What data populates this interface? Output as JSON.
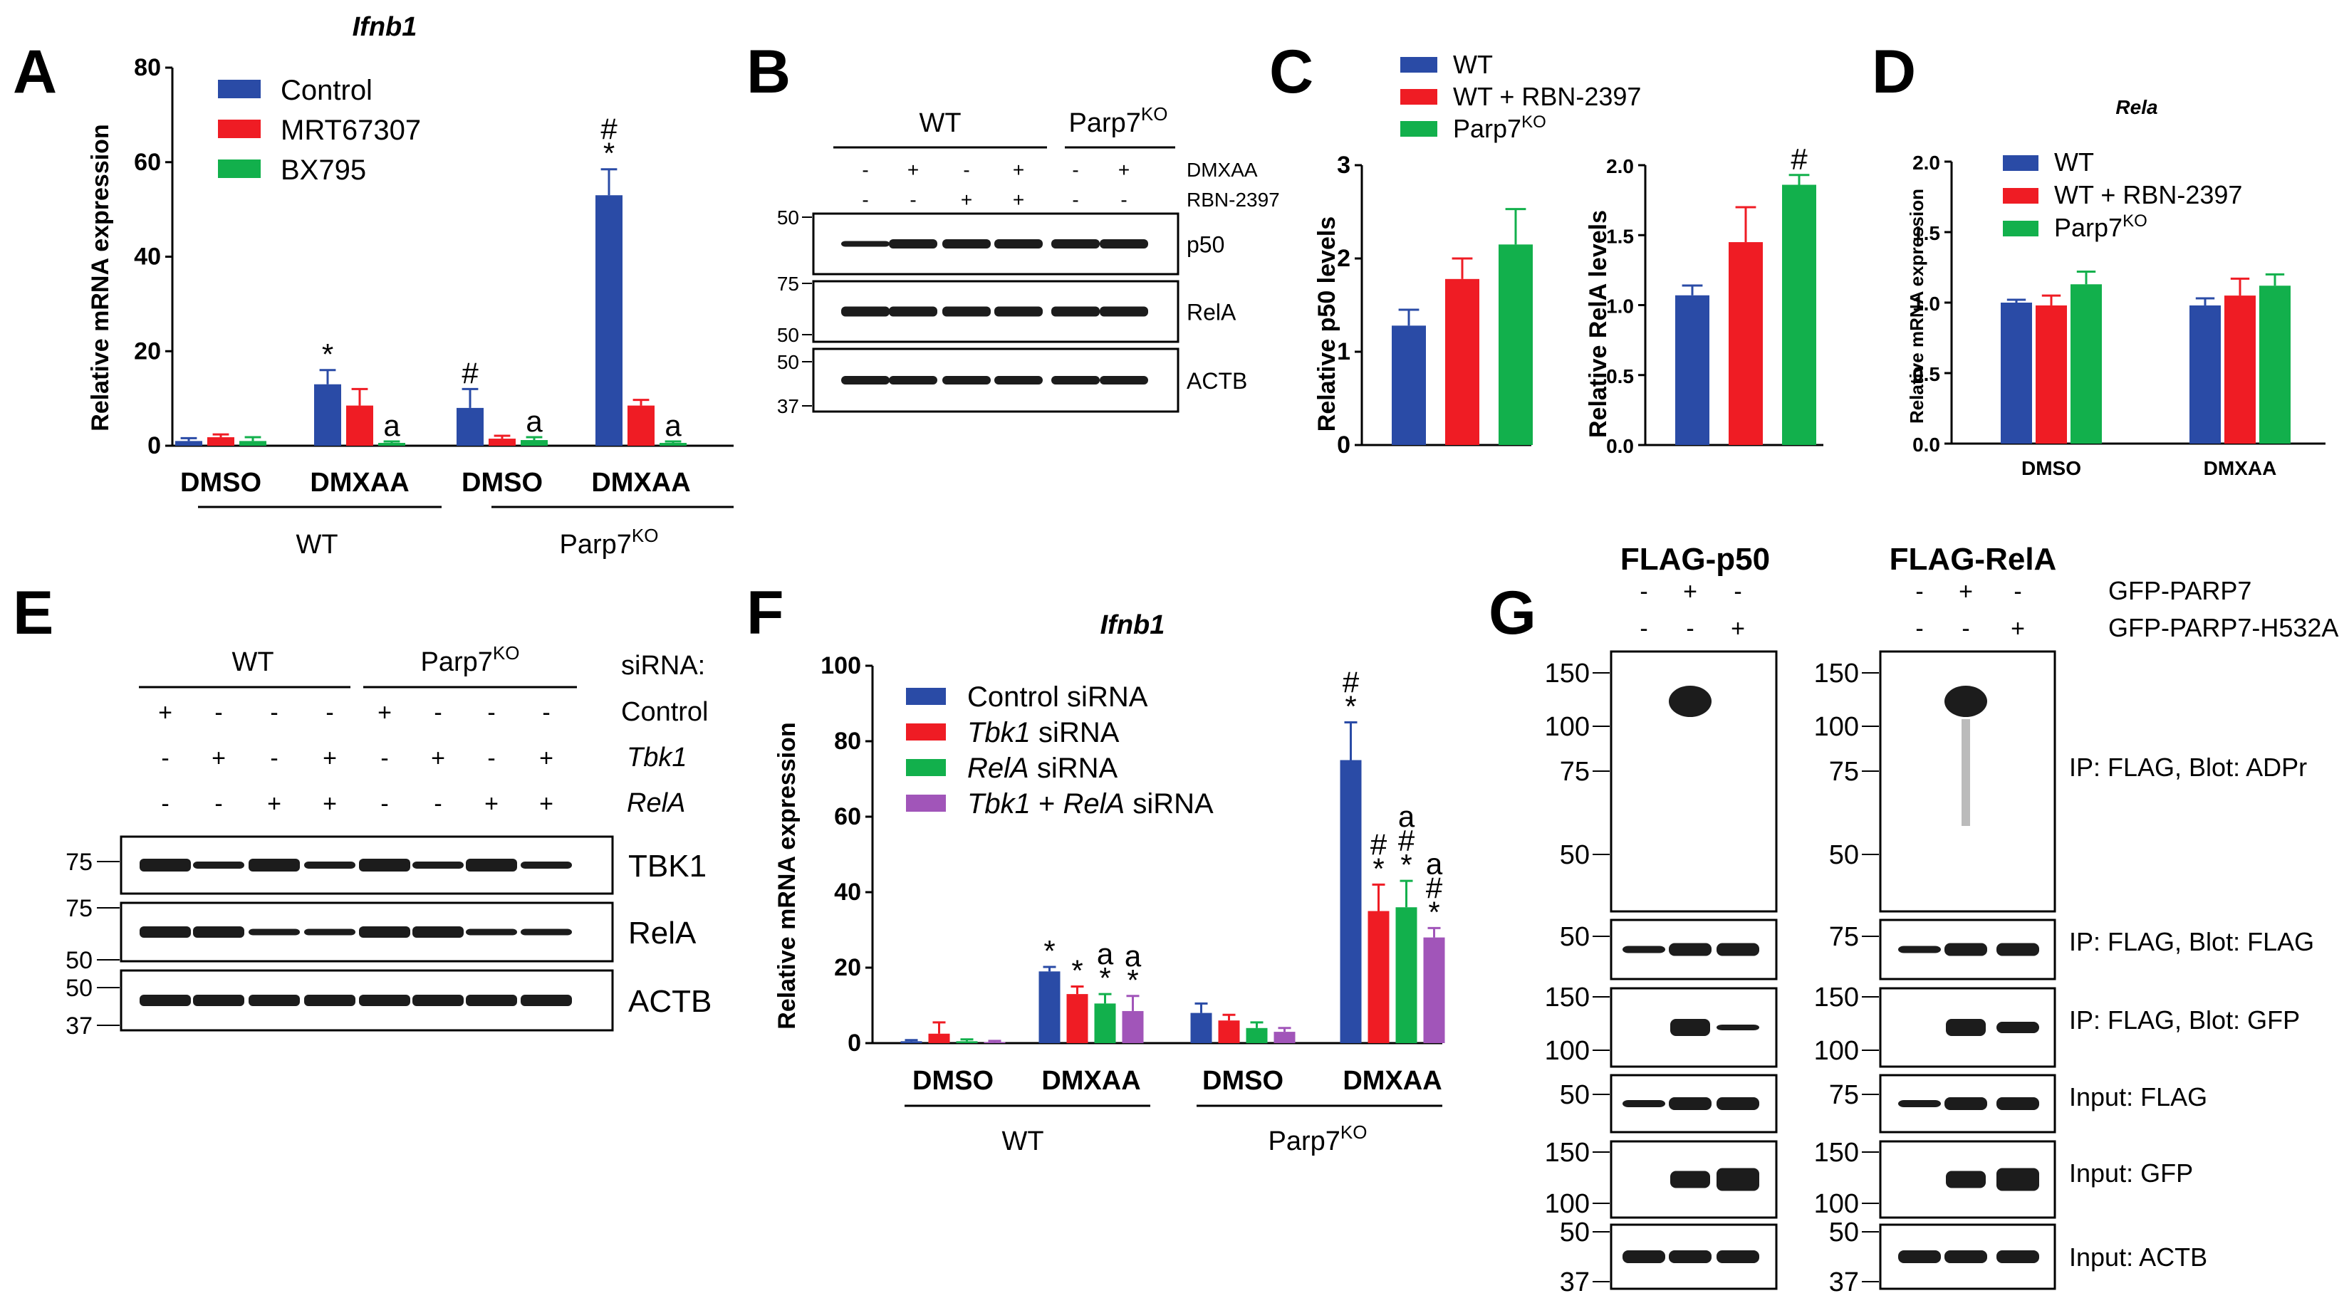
{
  "colors": {
    "blue": "#2a4ba6",
    "red": "#ef1c24",
    "green": "#12b04c",
    "purple": "#a155b9",
    "band": "#1c1c1c"
  },
  "panel_labels": [
    "A",
    "B",
    "C",
    "D",
    "E",
    "F",
    "G"
  ],
  "chart_data": [
    {
      "panel": "A",
      "type": "bar",
      "title": "Ifnb1",
      "ylabel": "Relative mRNA expression",
      "ylim": [
        0,
        80
      ],
      "yticks": [
        "0",
        "20",
        "40",
        "60",
        "80"
      ],
      "categories": [
        "DMSO",
        "DMXAA",
        "DMSO",
        "DMXAA"
      ],
      "genotypes": [
        "WT",
        "Parp7KO"
      ],
      "series": [
        {
          "name": "Control",
          "values": [
            1.0,
            13.0,
            8.0,
            53.0
          ],
          "errors": [
            0.6,
            3.0,
            4.0,
            5.5
          ],
          "marks": [
            "",
            "*",
            "#",
            "#\n*"
          ]
        },
        {
          "name": "MRT67307",
          "values": [
            1.8,
            8.5,
            1.5,
            8.5
          ],
          "errors": [
            0.6,
            3.5,
            0.6,
            1.2
          ],
          "marks": [
            "",
            "",
            "",
            ""
          ]
        },
        {
          "name": "BX795",
          "values": [
            1.0,
            0.6,
            1.2,
            0.6
          ],
          "errors": [
            0.8,
            0.3,
            0.6,
            0.3
          ],
          "marks": [
            "",
            "a",
            "a",
            "a"
          ]
        }
      ]
    },
    {
      "panel": "C",
      "type": "bar",
      "subplots": [
        {
          "ylabel": "Relative p50 levels",
          "ylim": [
            0,
            3
          ],
          "yticks": [
            "0",
            "1",
            "2",
            "3"
          ],
          "values": [
            1.28,
            1.78,
            2.15
          ],
          "errors": [
            0.17,
            0.22,
            0.38
          ],
          "marks": [
            "",
            "",
            ""
          ]
        },
        {
          "ylabel": "Relative RelA levels",
          "ylim": [
            0,
            2
          ],
          "yticks": [
            "0.0",
            "0.5",
            "1.0",
            "1.5",
            "2.0"
          ],
          "values": [
            1.07,
            1.45,
            1.86
          ],
          "errors": [
            0.07,
            0.25,
            0.07
          ],
          "marks": [
            "",
            "",
            "#"
          ]
        }
      ],
      "series_names": [
        "WT",
        "WT + RBN-2397",
        "Parp7KO"
      ]
    },
    {
      "panel": "D",
      "type": "bar",
      "title": "Rela",
      "ylabel": "Relative mRNA expression",
      "ylim": [
        0,
        2
      ],
      "yticks": [
        "0.0",
        "0.5",
        "1.0",
        "1.5",
        "2.0"
      ],
      "categories": [
        "DMSO",
        "DMXAA"
      ],
      "series": [
        {
          "name": "WT",
          "values": [
            1.0,
            0.98
          ],
          "errors": [
            0.02,
            0.05
          ]
        },
        {
          "name": "WT + RBN-2397",
          "values": [
            0.98,
            1.05
          ],
          "errors": [
            0.07,
            0.12
          ]
        },
        {
          "name": "Parp7KO",
          "values": [
            1.13,
            1.12
          ],
          "errors": [
            0.09,
            0.08
          ]
        }
      ]
    },
    {
      "panel": "F",
      "type": "bar",
      "title": "Ifnb1",
      "ylabel": "Relative mRNA expression",
      "ylim": [
        0,
        100
      ],
      "yticks": [
        "0",
        "20",
        "40",
        "60",
        "80",
        "100"
      ],
      "categories": [
        "DMSO",
        "DMXAA",
        "DMSO",
        "DMXAA"
      ],
      "genotypes": [
        "WT",
        "Parp7KO"
      ],
      "series": [
        {
          "name": "Control siRNA",
          "values": [
            0.5,
            19,
            8,
            75
          ],
          "errors": [
            0.3,
            1.2,
            2.5,
            10
          ],
          "marks": [
            "",
            "*",
            "",
            "#\n*"
          ]
        },
        {
          "name": "Tbk1 siRNA",
          "values": [
            2.5,
            13,
            6,
            35
          ],
          "errors": [
            3,
            2,
            1.5,
            7
          ],
          "marks": [
            "",
            "*",
            "",
            "#\n*"
          ]
        },
        {
          "name": "RelA siRNA",
          "values": [
            0.5,
            10.5,
            4,
            36
          ],
          "errors": [
            0.5,
            2.5,
            1.5,
            7
          ],
          "marks": [
            "",
            "a\n*",
            "",
            "a\n#\n*"
          ]
        },
        {
          "name": "Tbk1 + RelA siRNA",
          "values": [
            0.3,
            8.5,
            3,
            28
          ],
          "errors": [
            0.3,
            4,
            1,
            2.5
          ],
          "marks": [
            "",
            "a\n*",
            "",
            "a\n#\n*"
          ]
        }
      ]
    }
  ],
  "panelA": {
    "legend": [
      "Control",
      "MRT67307",
      "BX795"
    ]
  },
  "panelB": {
    "genotypes": [
      "WT",
      "Parp7"
    ],
    "sup": "KO",
    "row_labels": [
      "DMXAA",
      "RBN-2397"
    ],
    "dmxaa": [
      "-",
      "+",
      "-",
      "+",
      "-",
      "+"
    ],
    "rbn": [
      "-",
      "-",
      "+",
      "+",
      "-",
      "-"
    ],
    "mw": [
      "50",
      "75",
      "50",
      "50",
      "37"
    ],
    "blots": [
      "p50",
      "RelA",
      "ACTB"
    ]
  },
  "panelC": {
    "legend": [
      "WT",
      "WT + RBN-2397",
      "Parp7"
    ],
    "sup": "KO"
  },
  "panelD": {
    "legend": [
      "WT",
      "WT + RBN-2397",
      "Parp7"
    ],
    "sup": "KO",
    "ylabel": "Relative mRNA expression"
  },
  "panelE": {
    "genotypes": [
      "WT",
      "Parp7"
    ],
    "sup": "KO",
    "siRNA_label": "siRNA:",
    "row_labels": [
      "Control",
      "Tbk1",
      "RelA"
    ],
    "rows": [
      [
        "+",
        "-",
        "-",
        "-",
        "+",
        "-",
        "-",
        "-"
      ],
      [
        "-",
        "+",
        "-",
        "+",
        "-",
        "+",
        "-",
        "+"
      ],
      [
        "-",
        "-",
        "+",
        "+",
        "-",
        "-",
        "+",
        "+"
      ]
    ],
    "mw": [
      "75",
      "75",
      "50",
      "50",
      "37"
    ],
    "blots": [
      "TBK1",
      "RelA",
      "ACTB"
    ]
  },
  "panelF": {
    "legend_plain": [
      "Control siRNA",
      " siRNA",
      " siRNA",
      " + ",
      " siRNA"
    ],
    "legend_italic": [
      "Tbk1",
      "RelA",
      "Tbk1",
      "RelA"
    ]
  },
  "panelG": {
    "titles": [
      "FLAG-p50",
      "FLAG-RelA"
    ],
    "row_labels": [
      "GFP-PARP7",
      "GFP-PARP7-H532A"
    ],
    "row1": [
      "-",
      "+",
      "-"
    ],
    "row2": [
      "-",
      "-",
      "+"
    ],
    "left_mw": {
      "adpr": [
        "150",
        "100",
        "75",
        "50"
      ],
      "flag": [
        "50"
      ],
      "gfp": [
        "150",
        "100"
      ],
      "inflag": [
        "50"
      ],
      "ingfp": [
        "150",
        "100"
      ],
      "actb": [
        "50",
        "37"
      ]
    },
    "right_mw": {
      "adpr": [
        "150",
        "100",
        "75",
        "50"
      ],
      "flag": [
        "75"
      ],
      "gfp": [
        "150",
        "100"
      ],
      "inflag": [
        "75"
      ],
      "ingfp": [
        "150",
        "100"
      ],
      "actb": [
        "50",
        "37"
      ]
    },
    "blot_labels": [
      "IP: FLAG, Blot: ADPr",
      "IP: FLAG, Blot: FLAG",
      "IP: FLAG, Blot: GFP",
      "Input: FLAG",
      "Input: GFP",
      "Input: ACTB"
    ]
  }
}
